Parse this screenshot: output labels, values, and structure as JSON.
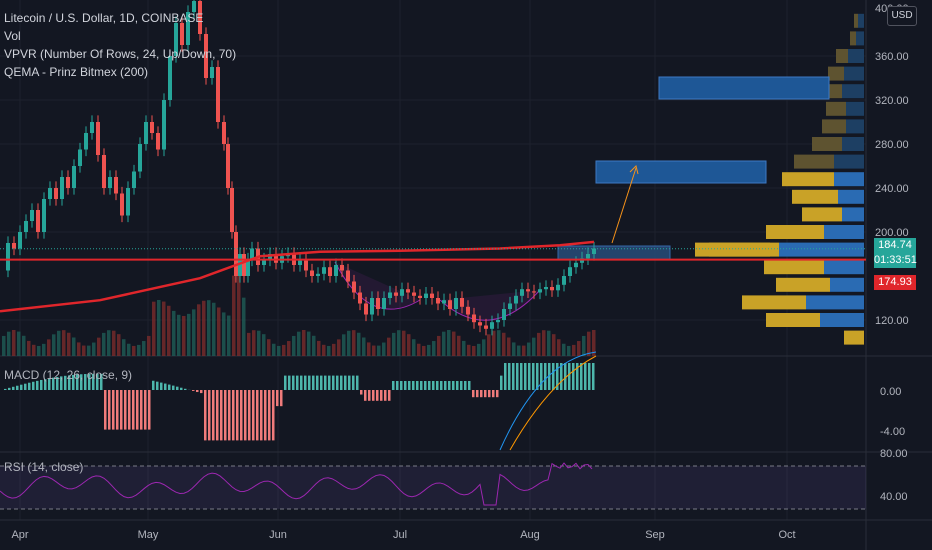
{
  "legend": {
    "title": "Litecoin / U.S. Dollar, 1D, COINBASE",
    "vol": "Vol",
    "vpvr": "VPVR (Number Of Rows, 24, Up/Down, 70)",
    "qema": "QEMA - Prinz Bitmex (200)"
  },
  "indicators": {
    "macd_label": "MACD (12, 26, close, 9)",
    "rsi_label": "RSI (14, close)"
  },
  "price_axis": {
    "currency": "USD",
    "top_tick": "400.00",
    "ticks": [
      "360.00",
      "320.00",
      "280.00",
      "240.00",
      "200.00",
      "120.00"
    ],
    "current_price": "184.74",
    "countdown": "01:33:51",
    "ema_value": "174.93"
  },
  "macd_axis": {
    "ticks": [
      "0.00",
      "-4.00"
    ]
  },
  "rsi_axis": {
    "ticks": [
      "80.00",
      "40.00"
    ]
  },
  "time_axis": {
    "labels": [
      "Apr",
      "May",
      "Jun",
      "Jul",
      "Aug",
      "Sep",
      "Oct"
    ]
  },
  "colors": {
    "background": "#131722",
    "up": "#26a69a",
    "down": "#ef5350",
    "ema": "#e0262b",
    "vpvr_up": "#2a6bb3",
    "vpvr_down": "#c9a227",
    "rsi": "#9c27b0",
    "box": "#1e5796"
  },
  "chart_data": {
    "type": "candlestick",
    "price_range": [
      90,
      410
    ],
    "price_series": [
      [
        0,
        165
      ],
      [
        6,
        190
      ],
      [
        12,
        185
      ],
      [
        18,
        200
      ],
      [
        24,
        210
      ],
      [
        30,
        220
      ],
      [
        36,
        200
      ],
      [
        42,
        230
      ],
      [
        48,
        240
      ],
      [
        54,
        230
      ],
      [
        60,
        250
      ],
      [
        66,
        240
      ],
      [
        72,
        260
      ],
      [
        78,
        275
      ],
      [
        84,
        290
      ],
      [
        90,
        300
      ],
      [
        96,
        270
      ],
      [
        102,
        240
      ],
      [
        108,
        250
      ],
      [
        114,
        235
      ],
      [
        120,
        215
      ],
      [
        126,
        240
      ],
      [
        132,
        255
      ],
      [
        138,
        280
      ],
      [
        144,
        300
      ],
      [
        150,
        290
      ],
      [
        156,
        275
      ],
      [
        162,
        320
      ],
      [
        168,
        360
      ],
      [
        174,
        390
      ],
      [
        180,
        370
      ],
      [
        186,
        400
      ],
      [
        192,
        410
      ],
      [
        198,
        380
      ],
      [
        204,
        340
      ],
      [
        210,
        350
      ],
      [
        216,
        300
      ],
      [
        222,
        280
      ],
      [
        226,
        240
      ],
      [
        230,
        200
      ],
      [
        234,
        160
      ],
      [
        238,
        180
      ],
      [
        242,
        160
      ],
      [
        246,
        175
      ],
      [
        250,
        185
      ],
      [
        256,
        170
      ],
      [
        262,
        175
      ],
      [
        268,
        180
      ],
      [
        274,
        172
      ],
      [
        280,
        178
      ],
      [
        286,
        180
      ],
      [
        292,
        170
      ],
      [
        298,
        174
      ],
      [
        304,
        165
      ],
      [
        310,
        160
      ],
      [
        316,
        162
      ],
      [
        322,
        168
      ],
      [
        328,
        160
      ],
      [
        334,
        170
      ],
      [
        340,
        165
      ],
      [
        346,
        155
      ],
      [
        352,
        145
      ],
      [
        358,
        135
      ],
      [
        364,
        125
      ],
      [
        370,
        140
      ],
      [
        376,
        130
      ],
      [
        382,
        140
      ],
      [
        388,
        145
      ],
      [
        394,
        142
      ],
      [
        400,
        148
      ],
      [
        406,
        145
      ],
      [
        412,
        142
      ],
      [
        418,
        140
      ],
      [
        424,
        144
      ],
      [
        430,
        140
      ],
      [
        436,
        135
      ],
      [
        442,
        138
      ],
      [
        448,
        130
      ],
      [
        454,
        140
      ],
      [
        460,
        132
      ],
      [
        466,
        125
      ],
      [
        472,
        118
      ],
      [
        478,
        115
      ],
      [
        484,
        112
      ],
      [
        490,
        118
      ],
      [
        496,
        120
      ],
      [
        502,
        130
      ],
      [
        508,
        135
      ],
      [
        514,
        142
      ],
      [
        520,
        148
      ],
      [
        526,
        146
      ],
      [
        532,
        145
      ],
      [
        538,
        148
      ],
      [
        544,
        150
      ],
      [
        550,
        147
      ],
      [
        556,
        152
      ],
      [
        562,
        160
      ],
      [
        568,
        168
      ],
      [
        574,
        172
      ],
      [
        580,
        176
      ],
      [
        586,
        180
      ],
      [
        592,
        185
      ]
    ],
    "ema_series": [
      [
        0,
        128
      ],
      [
        100,
        138
      ],
      [
        200,
        158
      ],
      [
        260,
        178
      ],
      [
        320,
        182
      ],
      [
        400,
        183
      ],
      [
        500,
        185
      ],
      [
        560,
        188
      ],
      [
        594,
        191
      ]
    ],
    "volume_profile": [
      {
        "price": 392,
        "up": 4,
        "down": 6
      },
      {
        "price": 376,
        "up": 6,
        "down": 8
      },
      {
        "price": 360,
        "up": 12,
        "down": 16
      },
      {
        "price": 344,
        "up": 16,
        "down": 20
      },
      {
        "price": 328,
        "up": 18,
        "down": 22
      },
      {
        "price": 312,
        "up": 20,
        "down": 18
      },
      {
        "price": 296,
        "up": 24,
        "down": 18
      },
      {
        "price": 280,
        "up": 30,
        "down": 22
      },
      {
        "price": 264,
        "up": 40,
        "down": 30
      },
      {
        "price": 248,
        "up": 52,
        "down": 30
      },
      {
        "price": 232,
        "up": 46,
        "down": 26
      },
      {
        "price": 216,
        "up": 40,
        "down": 22
      },
      {
        "price": 200,
        "up": 58,
        "down": 40
      },
      {
        "price": 184,
        "up": 70,
        "down": 85
      },
      {
        "price": 168,
        "up": 60,
        "down": 40
      },
      {
        "price": 152,
        "up": 54,
        "down": 34
      },
      {
        "price": 136,
        "up": 64,
        "down": 58
      },
      {
        "price": 120,
        "up": 54,
        "down": 44
      },
      {
        "price": 104,
        "up": 20,
        "down": 0
      }
    ],
    "macd_range": [
      -6,
      2
    ],
    "rsi_range": [
      20,
      90
    ]
  }
}
